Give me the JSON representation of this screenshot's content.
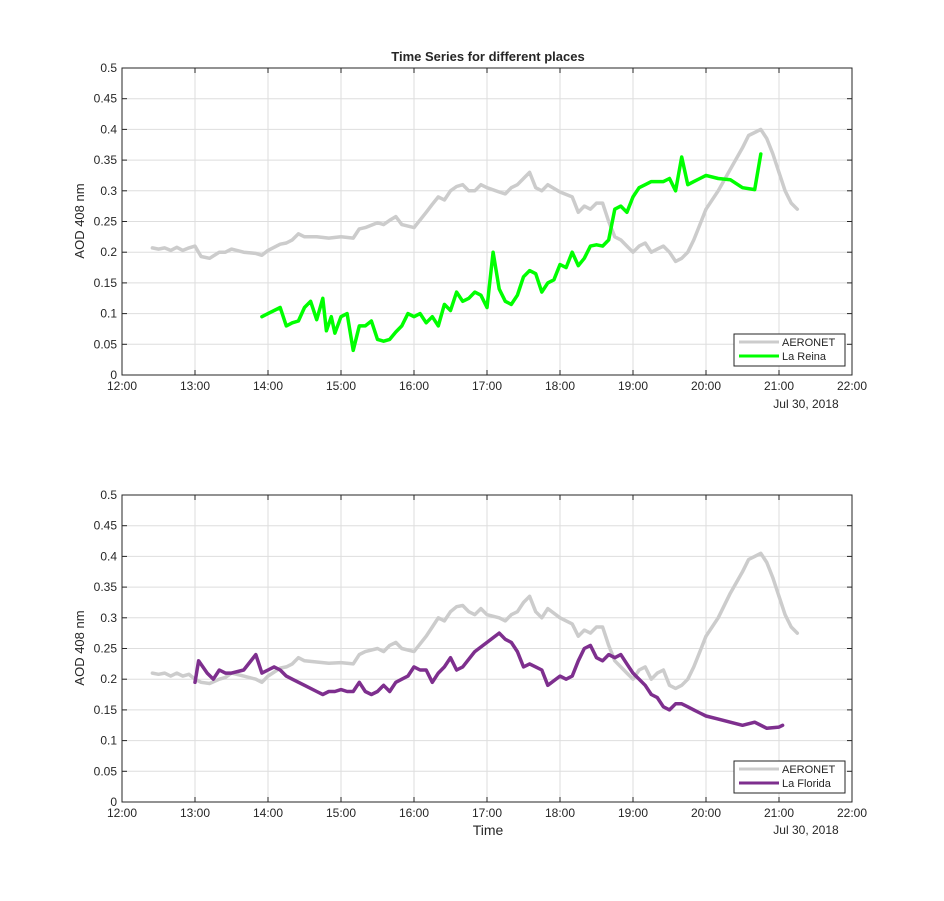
{
  "figure": {
    "background": "#ffffff",
    "axis_color": "#262626",
    "grid_color": "#dedede"
  },
  "chart_data": [
    {
      "type": "line",
      "title": "Time Series for different places",
      "xlabel": "",
      "ylabel": "AOD 408 nm",
      "date_label": "Jul 30, 2018",
      "xlim": [
        "12:00",
        "22:00"
      ],
      "ylim": [
        0,
        0.5
      ],
      "x_ticks": [
        "12:00",
        "13:00",
        "14:00",
        "15:00",
        "16:00",
        "17:00",
        "18:00",
        "19:00",
        "20:00",
        "21:00",
        "22:00"
      ],
      "y_ticks": [
        "0",
        "0.05",
        "0.1",
        "0.15",
        "0.2",
        "0.25",
        "0.3",
        "0.35",
        "0.4",
        "0.45",
        "0.5"
      ],
      "grid": true,
      "legend_position": "bottom-right",
      "series": [
        {
          "name": "AERONET",
          "color": "#cccccc",
          "x": [
            "12:25",
            "12:30",
            "12:35",
            "12:40",
            "12:45",
            "12:50",
            "12:55",
            "13:00",
            "13:05",
            "13:12",
            "13:20",
            "13:25",
            "13:30",
            "13:40",
            "13:50",
            "13:55",
            "14:00",
            "14:10",
            "14:15",
            "14:20",
            "14:25",
            "14:30",
            "14:40",
            "14:50",
            "15:00",
            "15:10",
            "15:15",
            "15:20",
            "15:30",
            "15:35",
            "15:40",
            "15:45",
            "15:50",
            "16:00",
            "16:10",
            "16:15",
            "16:20",
            "16:25",
            "16:30",
            "16:35",
            "16:40",
            "16:45",
            "16:50",
            "16:55",
            "17:00",
            "17:10",
            "17:15",
            "17:20",
            "17:25",
            "17:30",
            "17:35",
            "17:40",
            "17:45",
            "17:50",
            "18:00",
            "18:10",
            "18:15",
            "18:20",
            "18:25",
            "18:30",
            "18:35",
            "18:40",
            "18:45",
            "18:50",
            "18:55",
            "19:00",
            "19:05",
            "19:10",
            "19:15",
            "19:20",
            "19:25",
            "19:30",
            "19:35",
            "19:40",
            "19:45",
            "19:50",
            "19:55",
            "20:00",
            "20:10",
            "20:20",
            "20:30",
            "20:35",
            "20:40",
            "20:45",
            "20:50",
            "20:55",
            "21:00",
            "21:05",
            "21:10",
            "21:15"
          ],
          "y": [
            0.207,
            0.205,
            0.207,
            0.203,
            0.208,
            0.203,
            0.207,
            0.21,
            0.193,
            0.19,
            0.2,
            0.2,
            0.205,
            0.2,
            0.198,
            0.195,
            0.203,
            0.213,
            0.215,
            0.22,
            0.23,
            0.225,
            0.225,
            0.223,
            0.225,
            0.223,
            0.238,
            0.24,
            0.248,
            0.245,
            0.252,
            0.258,
            0.245,
            0.24,
            0.265,
            0.278,
            0.29,
            0.285,
            0.3,
            0.307,
            0.31,
            0.3,
            0.3,
            0.31,
            0.305,
            0.298,
            0.295,
            0.305,
            0.31,
            0.32,
            0.33,
            0.305,
            0.3,
            0.31,
            0.298,
            0.29,
            0.265,
            0.275,
            0.27,
            0.28,
            0.28,
            0.25,
            0.225,
            0.22,
            0.21,
            0.2,
            0.21,
            0.215,
            0.2,
            0.205,
            0.21,
            0.2,
            0.185,
            0.19,
            0.2,
            0.22,
            0.245,
            0.27,
            0.3,
            0.335,
            0.37,
            0.39,
            0.395,
            0.4,
            0.385,
            0.36,
            0.33,
            0.3,
            0.28,
            0.27
          ]
        },
        {
          "name": "La Reina",
          "color": "#00ff00",
          "x": [
            "13:55",
            "14:00",
            "14:10",
            "14:15",
            "14:20",
            "14:25",
            "14:30",
            "14:35",
            "14:40",
            "14:45",
            "14:48",
            "14:52",
            "14:55",
            "15:00",
            "15:05",
            "15:10",
            "15:15",
            "15:20",
            "15:25",
            "15:30",
            "15:35",
            "15:40",
            "15:45",
            "15:50",
            "15:55",
            "16:00",
            "16:05",
            "16:10",
            "16:15",
            "16:20",
            "16:25",
            "16:30",
            "16:35",
            "16:40",
            "16:45",
            "16:50",
            "16:55",
            "17:00",
            "17:05",
            "17:10",
            "17:15",
            "17:20",
            "17:25",
            "17:30",
            "17:35",
            "17:40",
            "17:45",
            "17:50",
            "17:55",
            "18:00",
            "18:05",
            "18:10",
            "18:15",
            "18:20",
            "18:25",
            "18:30",
            "18:35",
            "18:40",
            "18:45",
            "18:50",
            "18:55",
            "19:00",
            "19:05",
            "19:10",
            "19:15",
            "19:20",
            "19:25",
            "19:30",
            "19:35",
            "19:40",
            "19:45",
            "19:50",
            "19:55",
            "20:00",
            "20:10",
            "20:20",
            "20:30",
            "20:40",
            "20:45"
          ],
          "y": [
            0.095,
            0.1,
            0.11,
            0.08,
            0.085,
            0.088,
            0.11,
            0.12,
            0.09,
            0.125,
            0.072,
            0.095,
            0.068,
            0.095,
            0.1,
            0.04,
            0.08,
            0.08,
            0.088,
            0.058,
            0.055,
            0.058,
            0.07,
            0.08,
            0.1,
            0.095,
            0.1,
            0.085,
            0.095,
            0.08,
            0.115,
            0.105,
            0.135,
            0.12,
            0.125,
            0.135,
            0.13,
            0.11,
            0.2,
            0.14,
            0.12,
            0.115,
            0.13,
            0.16,
            0.17,
            0.165,
            0.135,
            0.15,
            0.155,
            0.18,
            0.175,
            0.2,
            0.178,
            0.19,
            0.21,
            0.212,
            0.21,
            0.22,
            0.27,
            0.275,
            0.265,
            0.29,
            0.305,
            0.31,
            0.315,
            0.315,
            0.315,
            0.32,
            0.3,
            0.355,
            0.31,
            0.315,
            0.32,
            0.325,
            0.32,
            0.318,
            0.305,
            0.302,
            0.36
          ]
        }
      ]
    },
    {
      "type": "line",
      "title": "",
      "xlabel": "Time",
      "ylabel": "AOD 408 nm",
      "date_label": "Jul 30, 2018",
      "xlim": [
        "12:00",
        "22:00"
      ],
      "ylim": [
        0,
        0.5
      ],
      "x_ticks": [
        "12:00",
        "13:00",
        "14:00",
        "15:00",
        "16:00",
        "17:00",
        "18:00",
        "19:00",
        "20:00",
        "21:00",
        "22:00"
      ],
      "y_ticks": [
        "0",
        "0.05",
        "0.1",
        "0.15",
        "0.2",
        "0.25",
        "0.3",
        "0.35",
        "0.4",
        "0.45",
        "0.5"
      ],
      "grid": true,
      "legend_position": "bottom-right",
      "series": [
        {
          "name": "AERONET",
          "color": "#cccccc",
          "x": [
            "12:25",
            "12:30",
            "12:35",
            "12:40",
            "12:45",
            "12:50",
            "12:55",
            "13:00",
            "13:05",
            "13:12",
            "13:20",
            "13:25",
            "13:30",
            "13:40",
            "13:50",
            "13:55",
            "14:00",
            "14:10",
            "14:15",
            "14:20",
            "14:25",
            "14:30",
            "14:40",
            "14:50",
            "15:00",
            "15:10",
            "15:15",
            "15:20",
            "15:30",
            "15:35",
            "15:40",
            "15:45",
            "15:50",
            "16:00",
            "16:10",
            "16:15",
            "16:20",
            "16:25",
            "16:30",
            "16:35",
            "16:40",
            "16:45",
            "16:50",
            "16:55",
            "17:00",
            "17:10",
            "17:15",
            "17:20",
            "17:25",
            "17:30",
            "17:35",
            "17:40",
            "17:45",
            "17:50",
            "18:00",
            "18:10",
            "18:15",
            "18:20",
            "18:25",
            "18:30",
            "18:35",
            "18:40",
            "18:45",
            "18:50",
            "18:55",
            "19:00",
            "19:05",
            "19:10",
            "19:15",
            "19:20",
            "19:25",
            "19:30",
            "19:35",
            "19:40",
            "19:45",
            "19:50",
            "19:55",
            "20:00",
            "20:10",
            "20:20",
            "20:30",
            "20:35",
            "20:40",
            "20:45",
            "20:50",
            "20:55",
            "21:00",
            "21:05",
            "21:10",
            "21:15"
          ],
          "y": [
            0.21,
            0.208,
            0.21,
            0.205,
            0.21,
            0.205,
            0.208,
            0.2,
            0.195,
            0.193,
            0.2,
            0.203,
            0.21,
            0.205,
            0.2,
            0.195,
            0.205,
            0.218,
            0.22,
            0.225,
            0.235,
            0.23,
            0.228,
            0.226,
            0.227,
            0.225,
            0.24,
            0.245,
            0.25,
            0.245,
            0.255,
            0.26,
            0.25,
            0.245,
            0.27,
            0.285,
            0.3,
            0.295,
            0.31,
            0.318,
            0.32,
            0.31,
            0.305,
            0.315,
            0.305,
            0.3,
            0.295,
            0.305,
            0.31,
            0.325,
            0.335,
            0.31,
            0.3,
            0.315,
            0.3,
            0.29,
            0.27,
            0.28,
            0.275,
            0.285,
            0.285,
            0.255,
            0.23,
            0.22,
            0.21,
            0.2,
            0.215,
            0.22,
            0.2,
            0.21,
            0.215,
            0.19,
            0.185,
            0.19,
            0.2,
            0.22,
            0.245,
            0.27,
            0.3,
            0.34,
            0.375,
            0.395,
            0.4,
            0.405,
            0.39,
            0.365,
            0.335,
            0.305,
            0.285,
            0.275
          ]
        },
        {
          "name": "La Florida",
          "color": "#7e2f8e",
          "x": [
            "13:00",
            "13:03",
            "13:10",
            "13:15",
            "13:20",
            "13:25",
            "13:30",
            "13:40",
            "13:50",
            "13:55",
            "14:00",
            "14:05",
            "14:10",
            "14:15",
            "14:20",
            "14:30",
            "14:40",
            "14:45",
            "14:50",
            "14:55",
            "15:00",
            "15:05",
            "15:10",
            "15:15",
            "15:20",
            "15:25",
            "15:30",
            "15:35",
            "15:40",
            "15:45",
            "15:50",
            "15:55",
            "16:00",
            "16:05",
            "16:10",
            "16:15",
            "16:20",
            "16:25",
            "16:30",
            "16:35",
            "16:40",
            "16:50",
            "17:00",
            "17:10",
            "17:15",
            "17:20",
            "17:25",
            "17:30",
            "17:35",
            "17:40",
            "17:45",
            "17:50",
            "18:00",
            "18:05",
            "18:10",
            "18:15",
            "18:20",
            "18:25",
            "18:30",
            "18:35",
            "18:40",
            "18:45",
            "18:50",
            "18:55",
            "19:00",
            "19:05",
            "19:10",
            "19:15",
            "19:20",
            "19:25",
            "19:30",
            "19:35",
            "19:40",
            "19:45",
            "19:50",
            "19:55",
            "20:00",
            "20:10",
            "20:20",
            "20:30",
            "20:40",
            "20:50",
            "21:00",
            "21:03"
          ],
          "y": [
            0.195,
            0.23,
            0.21,
            0.2,
            0.215,
            0.21,
            0.21,
            0.215,
            0.24,
            0.21,
            0.215,
            0.22,
            0.215,
            0.205,
            0.2,
            0.19,
            0.18,
            0.175,
            0.18,
            0.18,
            0.183,
            0.18,
            0.18,
            0.195,
            0.18,
            0.175,
            0.18,
            0.19,
            0.18,
            0.195,
            0.2,
            0.205,
            0.22,
            0.215,
            0.215,
            0.195,
            0.21,
            0.22,
            0.235,
            0.215,
            0.22,
            0.245,
            0.26,
            0.275,
            0.265,
            0.26,
            0.245,
            0.22,
            0.225,
            0.22,
            0.215,
            0.19,
            0.205,
            0.2,
            0.205,
            0.23,
            0.25,
            0.255,
            0.235,
            0.23,
            0.24,
            0.235,
            0.24,
            0.225,
            0.21,
            0.2,
            0.19,
            0.175,
            0.17,
            0.155,
            0.15,
            0.16,
            0.16,
            0.155,
            0.15,
            0.145,
            0.14,
            0.135,
            0.13,
            0.125,
            0.13,
            0.12,
            0.122,
            0.125
          ]
        }
      ]
    }
  ]
}
